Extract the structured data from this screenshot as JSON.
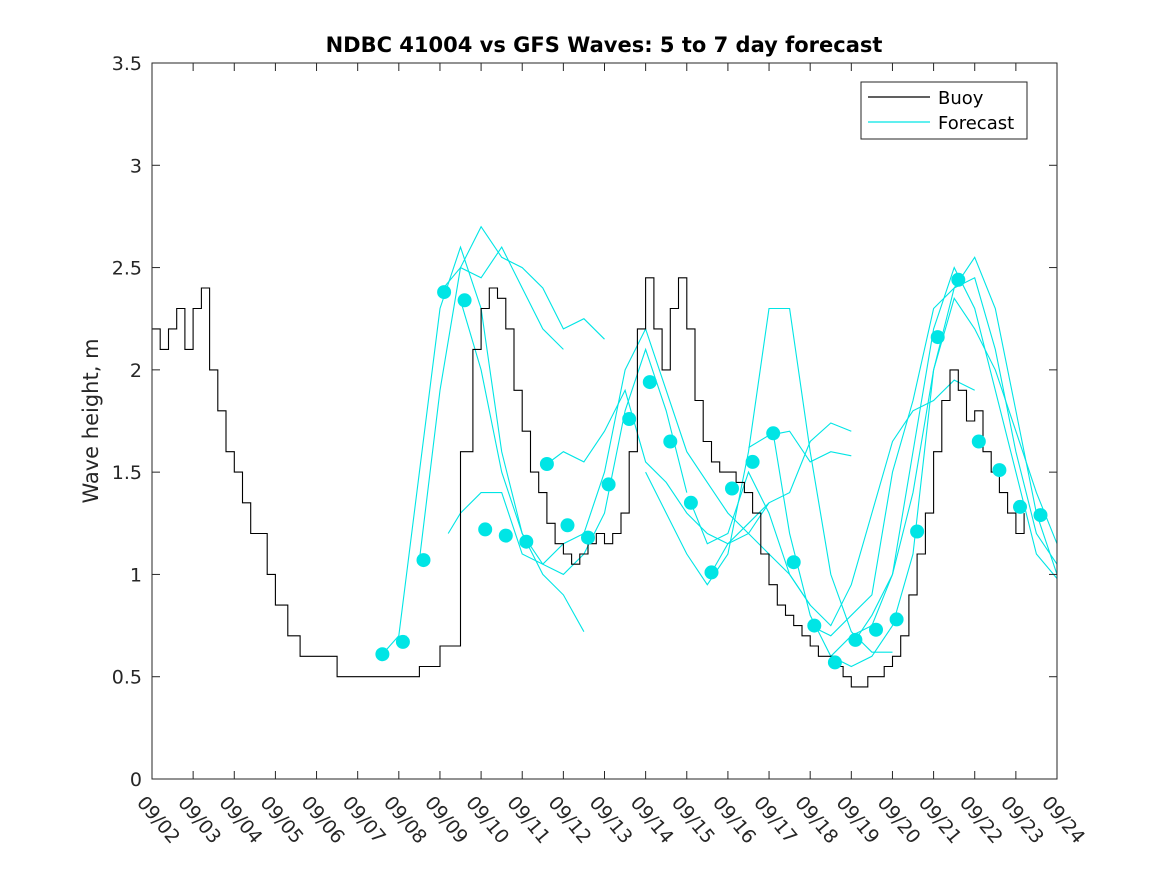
{
  "chart_data": {
    "type": "line",
    "title": "NDBC 41004 vs GFS Waves: 5 to 7 day forecast",
    "xlabel": "",
    "ylabel": "Wave height, m",
    "xlim": [
      0,
      22
    ],
    "ylim": [
      0,
      3.5
    ],
    "y_ticks": [
      0,
      0.5,
      1,
      1.5,
      2,
      2.5,
      3,
      3.5
    ],
    "y_tick_labels": [
      "0",
      "0.5",
      "1",
      "1.5",
      "2",
      "2.5",
      "3",
      "3.5"
    ],
    "x_tick_labels": [
      "09/02",
      "09/03",
      "09/04",
      "09/05",
      "09/06",
      "09/07",
      "09/08",
      "09/09",
      "09/10",
      "09/11",
      "09/12",
      "09/13",
      "09/14",
      "09/15",
      "09/16",
      "09/17",
      "09/18",
      "09/19",
      "09/20",
      "09/21",
      "09/22",
      "09/23",
      "09/24"
    ],
    "legend": {
      "location": "top-right",
      "entries": [
        "Buoy",
        "Forecast"
      ]
    },
    "colors": {
      "buoy": "#000000",
      "forecast": "#00e5e5",
      "axis": "#262626"
    },
    "buoy": {
      "name": "Buoy",
      "x": [
        0,
        0.2,
        0.4,
        0.6,
        0.8,
        1.0,
        1.2,
        1.4,
        1.6,
        1.8,
        2.0,
        2.2,
        2.4,
        2.6,
        2.8,
        3.0,
        3.3,
        3.6,
        3.9,
        4.2,
        4.5,
        5.0,
        5.5,
        6.0,
        6.5,
        7.0,
        7.5,
        7.8,
        8.0,
        8.2,
        8.4,
        8.6,
        8.8,
        9.0,
        9.2,
        9.4,
        9.6,
        9.8,
        10.0,
        10.2,
        10.4,
        10.6,
        10.8,
        11.0,
        11.2,
        11.4,
        11.6,
        11.8,
        12.0,
        12.2,
        12.4,
        12.6,
        12.8,
        13.0,
        13.2,
        13.4,
        13.6,
        13.8,
        14.0,
        14.2,
        14.4,
        14.6,
        14.8,
        15.0,
        15.2,
        15.4,
        15.6,
        15.8,
        16.0,
        16.2,
        16.4,
        16.6,
        16.8,
        17.0,
        17.2,
        17.4,
        17.6,
        17.8,
        18.0,
        18.2,
        18.4,
        18.6,
        18.8,
        19.0,
        19.2,
        19.4,
        19.6,
        19.8,
        20.0,
        20.2,
        20.4,
        20.6,
        20.8,
        21.0,
        21.2
      ],
      "y": [
        2.2,
        2.1,
        2.2,
        2.3,
        2.1,
        2.3,
        2.4,
        2.0,
        1.8,
        1.6,
        1.5,
        1.35,
        1.2,
        1.2,
        1.0,
        0.85,
        0.7,
        0.6,
        0.6,
        0.6,
        0.5,
        0.5,
        0.5,
        0.5,
        0.55,
        0.65,
        1.6,
        2.1,
        2.3,
        2.4,
        2.35,
        2.2,
        1.9,
        1.7,
        1.5,
        1.4,
        1.25,
        1.15,
        1.1,
        1.05,
        1.1,
        1.15,
        1.2,
        1.15,
        1.2,
        1.3,
        1.6,
        2.2,
        2.45,
        2.2,
        2.0,
        2.3,
        2.45,
        2.2,
        1.85,
        1.65,
        1.55,
        1.5,
        1.5,
        1.45,
        1.4,
        1.3,
        1.1,
        0.95,
        0.85,
        0.8,
        0.75,
        0.7,
        0.65,
        0.6,
        0.6,
        0.55,
        0.5,
        0.45,
        0.45,
        0.5,
        0.5,
        0.55,
        0.6,
        0.7,
        0.9,
        1.1,
        1.3,
        1.6,
        1.85,
        2.0,
        1.9,
        1.75,
        1.8,
        1.6,
        1.5,
        1.4,
        1.3,
        1.2,
        1.3
      ]
    },
    "forecast_markers": {
      "name": "Forecast",
      "x": [
        5.6,
        6.1,
        6.6,
        7.1,
        7.6,
        8.1,
        8.6,
        9.1,
        9.6,
        10.1,
        10.6,
        11.1,
        11.6,
        12.1,
        12.6,
        13.1,
        13.6,
        14.1,
        14.6,
        15.1,
        15.6,
        16.1,
        16.6,
        17.1,
        17.6,
        18.1,
        18.6,
        19.1,
        19.6,
        20.1,
        20.6,
        21.1,
        21.6
      ],
      "y": [
        0.61,
        0.67,
        1.07,
        2.38,
        2.34,
        1.22,
        1.19,
        1.16,
        1.54,
        1.24,
        1.18,
        1.44,
        1.76,
        1.94,
        1.65,
        1.35,
        1.01,
        1.42,
        1.55,
        1.69,
        1.06,
        0.75,
        0.57,
        0.68,
        0.73,
        0.78,
        1.21,
        2.16,
        2.44,
        1.65,
        1.51,
        1.33,
        1.29
      ]
    },
    "forecast_series": [
      {
        "x": [
          5.6,
          6.0,
          6.5,
          7.0,
          7.5,
          8.0,
          8.5,
          9.0,
          9.5,
          10.0,
          10.5,
          11.0,
          11.5,
          12.0,
          12.5,
          13.0
        ],
        "y": [
          0.61,
          0.7,
          1.5,
          2.3,
          2.6,
          2.3,
          1.6,
          1.2,
          1.05,
          1.0,
          1.1,
          1.3,
          1.8,
          2.1,
          1.8,
          1.4
        ]
      },
      {
        "x": [
          6.5,
          7.0,
          7.5,
          8.0,
          8.5,
          9.0,
          9.5,
          10.0
        ],
        "y": [
          1.07,
          1.9,
          2.5,
          2.45,
          2.6,
          2.4,
          2.2,
          2.1
        ]
      },
      {
        "x": [
          7.0,
          7.5,
          8.0,
          8.5,
          9.0,
          9.5,
          10.0,
          10.5,
          11.0
        ],
        "y": [
          2.38,
          2.5,
          2.7,
          2.55,
          2.5,
          2.4,
          2.2,
          2.25,
          2.15
        ]
      },
      {
        "x": [
          7.5,
          8.0,
          8.5,
          9.0,
          9.5,
          10.0,
          10.5
        ],
        "y": [
          2.34,
          2.0,
          1.5,
          1.2,
          1.0,
          0.9,
          0.72
        ]
      },
      {
        "x": [
          7.2,
          7.5,
          8.0,
          8.5,
          9.0,
          9.5,
          10.0,
          10.5,
          11.0,
          11.5,
          12.0,
          12.5,
          13.0,
          13.5,
          14.0,
          14.5,
          15.0,
          15.5,
          16.0
        ],
        "y": [
          1.2,
          1.3,
          1.4,
          1.4,
          1.1,
          1.05,
          1.15,
          1.2,
          1.5,
          2.0,
          2.2,
          1.9,
          1.6,
          1.45,
          1.3,
          1.2,
          1.1,
          1.0,
          0.85
        ]
      },
      {
        "x": [
          9.6,
          10.0,
          10.5,
          11.0,
          11.5,
          12.0,
          12.5,
          13.0,
          13.5,
          14.0,
          14.5,
          15.0
        ],
        "y": [
          1.54,
          1.6,
          1.55,
          1.7,
          1.9,
          1.55,
          1.45,
          1.3,
          1.2,
          1.15,
          1.2,
          1.35
        ]
      },
      {
        "x": [
          12.0,
          12.5,
          13.0,
          13.5,
          14.0,
          14.5,
          15.0,
          15.5,
          16.0,
          16.5,
          17.0,
          17.5,
          18.0
        ],
        "y": [
          1.5,
          1.3,
          1.1,
          0.95,
          1.1,
          1.6,
          2.3,
          2.3,
          1.6,
          1.0,
          0.72,
          0.62,
          0.62
        ]
      },
      {
        "x": [
          13.6,
          14.0,
          14.5,
          15.0,
          15.5,
          16.0,
          16.5,
          17.0
        ],
        "y": [
          1.01,
          1.15,
          1.25,
          1.35,
          1.4,
          1.65,
          1.74,
          1.7
        ]
      },
      {
        "x": [
          15.1,
          15.5,
          16.0,
          16.5,
          17.0,
          17.5,
          18.0,
          18.5,
          19.0,
          19.5,
          20.0,
          20.5,
          21.0,
          21.5,
          22.0
        ],
        "y": [
          1.69,
          1.2,
          0.8,
          0.6,
          0.55,
          0.6,
          0.75,
          1.1,
          2.0,
          2.4,
          2.55,
          2.3,
          1.8,
          1.3,
          1.0
        ]
      },
      {
        "x": [
          16.0,
          16.5,
          17.0,
          17.5,
          18.0,
          18.5,
          19.0,
          19.5,
          20.0,
          20.5,
          21.0,
          21.5,
          22.0
        ],
        "y": [
          0.75,
          0.7,
          0.8,
          0.9,
          1.5,
          1.85,
          2.3,
          2.4,
          2.45,
          2.1,
          1.6,
          1.2,
          1.05
        ]
      },
      {
        "x": [
          16.5,
          17.0,
          17.5,
          18.0,
          18.5,
          19.0,
          19.5,
          20.0,
          20.5,
          21.0,
          21.5,
          22.0
        ],
        "y": [
          0.6,
          0.7,
          0.75,
          1.0,
          1.6,
          2.2,
          2.5,
          2.3,
          1.9,
          1.5,
          1.1,
          0.98
        ]
      },
      {
        "x": [
          17.1,
          17.5,
          18.0,
          18.5,
          19.0,
          19.5,
          20.0,
          20.5,
          21.0,
          21.5,
          22.0
        ],
        "y": [
          0.68,
          0.8,
          1.0,
          1.4,
          2.0,
          2.35,
          2.2,
          2.0,
          1.7,
          1.4,
          1.15
        ]
      },
      {
        "x": [
          13.1,
          13.5,
          14.0,
          14.5,
          15.0,
          15.5,
          16.0,
          16.5,
          17.0,
          17.5,
          18.0,
          18.5,
          19.0,
          19.5,
          20.0
        ],
        "y": [
          1.35,
          1.15,
          1.2,
          1.5,
          1.3,
          1.0,
          0.85,
          0.75,
          0.95,
          1.3,
          1.65,
          1.8,
          1.85,
          1.95,
          1.9
        ]
      },
      {
        "x": [
          14.5,
          15.0,
          15.5,
          16.0,
          16.5,
          17.0
        ],
        "y": [
          1.62,
          1.68,
          1.7,
          1.55,
          1.6,
          1.58
        ]
      }
    ]
  }
}
